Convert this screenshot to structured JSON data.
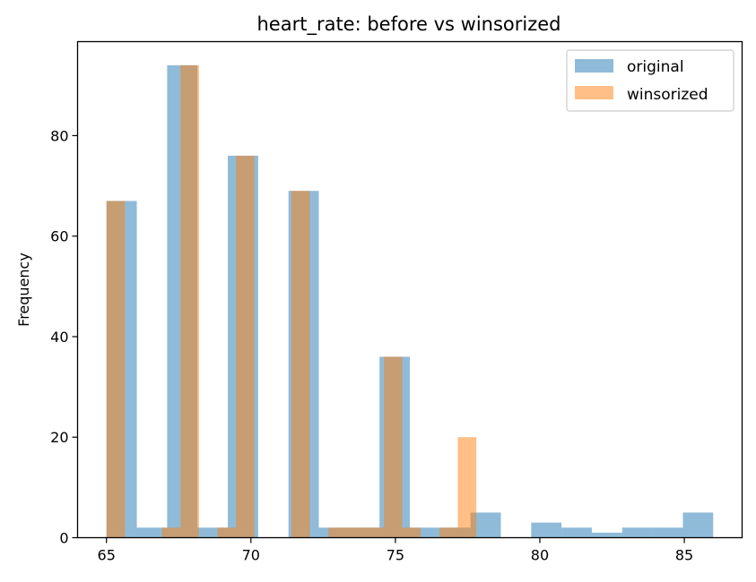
{
  "chart_data": {
    "type": "bar",
    "title": "heart_rate: before vs winsorized",
    "xlabel": "",
    "ylabel": "Frequency",
    "xlim": [
      64,
      87
    ],
    "ylim": [
      0,
      98.7
    ],
    "xticks": [
      65,
      70,
      75,
      80,
      85
    ],
    "yticks": [
      0,
      20,
      40,
      60,
      80
    ],
    "grid": false,
    "legend_position": "top-right",
    "series": [
      {
        "name": "original",
        "color": "#1f77b4",
        "opacity": 0.5,
        "bins": [
          {
            "x0": 65.0,
            "x1": 66.05,
            "count": 67
          },
          {
            "x0": 66.05,
            "x1": 67.1,
            "count": 2
          },
          {
            "x0": 67.1,
            "x1": 68.15,
            "count": 94
          },
          {
            "x0": 68.15,
            "x1": 69.2,
            "count": 2
          },
          {
            "x0": 69.2,
            "x1": 70.25,
            "count": 76
          },
          {
            "x0": 70.25,
            "x1": 71.3,
            "count": 0
          },
          {
            "x0": 71.3,
            "x1": 72.35,
            "count": 69
          },
          {
            "x0": 72.35,
            "x1": 73.4,
            "count": 2
          },
          {
            "x0": 73.4,
            "x1": 74.45,
            "count": 2
          },
          {
            "x0": 74.45,
            "x1": 75.5,
            "count": 36
          },
          {
            "x0": 75.5,
            "x1": 76.55,
            "count": 2
          },
          {
            "x0": 76.55,
            "x1": 77.6,
            "count": 2
          },
          {
            "x0": 77.6,
            "x1": 78.65,
            "count": 5
          },
          {
            "x0": 78.65,
            "x1": 79.7,
            "count": 0
          },
          {
            "x0": 79.7,
            "x1": 80.75,
            "count": 3
          },
          {
            "x0": 80.75,
            "x1": 81.8,
            "count": 2
          },
          {
            "x0": 81.8,
            "x1": 82.85,
            "count": 1
          },
          {
            "x0": 82.85,
            "x1": 83.9,
            "count": 2
          },
          {
            "x0": 83.9,
            "x1": 84.95,
            "count": 2
          },
          {
            "x0": 84.95,
            "x1": 86.0,
            "count": 5
          }
        ]
      },
      {
        "name": "winsorized",
        "color": "#ff7f0e",
        "opacity": 0.5,
        "bins": [
          {
            "x0": 65.0,
            "x1": 65.64,
            "count": 67
          },
          {
            "x0": 65.64,
            "x1": 66.28,
            "count": 0
          },
          {
            "x0": 66.28,
            "x1": 66.92,
            "count": 0
          },
          {
            "x0": 66.92,
            "x1": 67.56,
            "count": 2
          },
          {
            "x0": 67.56,
            "x1": 68.2,
            "count": 94
          },
          {
            "x0": 68.2,
            "x1": 68.84,
            "count": 0
          },
          {
            "x0": 68.84,
            "x1": 69.48,
            "count": 2
          },
          {
            "x0": 69.48,
            "x1": 70.12,
            "count": 76
          },
          {
            "x0": 70.12,
            "x1": 70.76,
            "count": 0
          },
          {
            "x0": 70.76,
            "x1": 71.4,
            "count": 0
          },
          {
            "x0": 71.4,
            "x1": 72.04,
            "count": 69
          },
          {
            "x0": 72.04,
            "x1": 72.68,
            "count": 0
          },
          {
            "x0": 72.68,
            "x1": 73.32,
            "count": 2
          },
          {
            "x0": 73.32,
            "x1": 73.96,
            "count": 2
          },
          {
            "x0": 73.96,
            "x1": 74.6,
            "count": 2
          },
          {
            "x0": 74.6,
            "x1": 75.24,
            "count": 36
          },
          {
            "x0": 75.24,
            "x1": 75.88,
            "count": 2
          },
          {
            "x0": 75.88,
            "x1": 76.52,
            "count": 0
          },
          {
            "x0": 76.52,
            "x1": 77.16,
            "count": 2
          },
          {
            "x0": 77.16,
            "x1": 77.8,
            "count": 20
          }
        ]
      }
    ]
  }
}
